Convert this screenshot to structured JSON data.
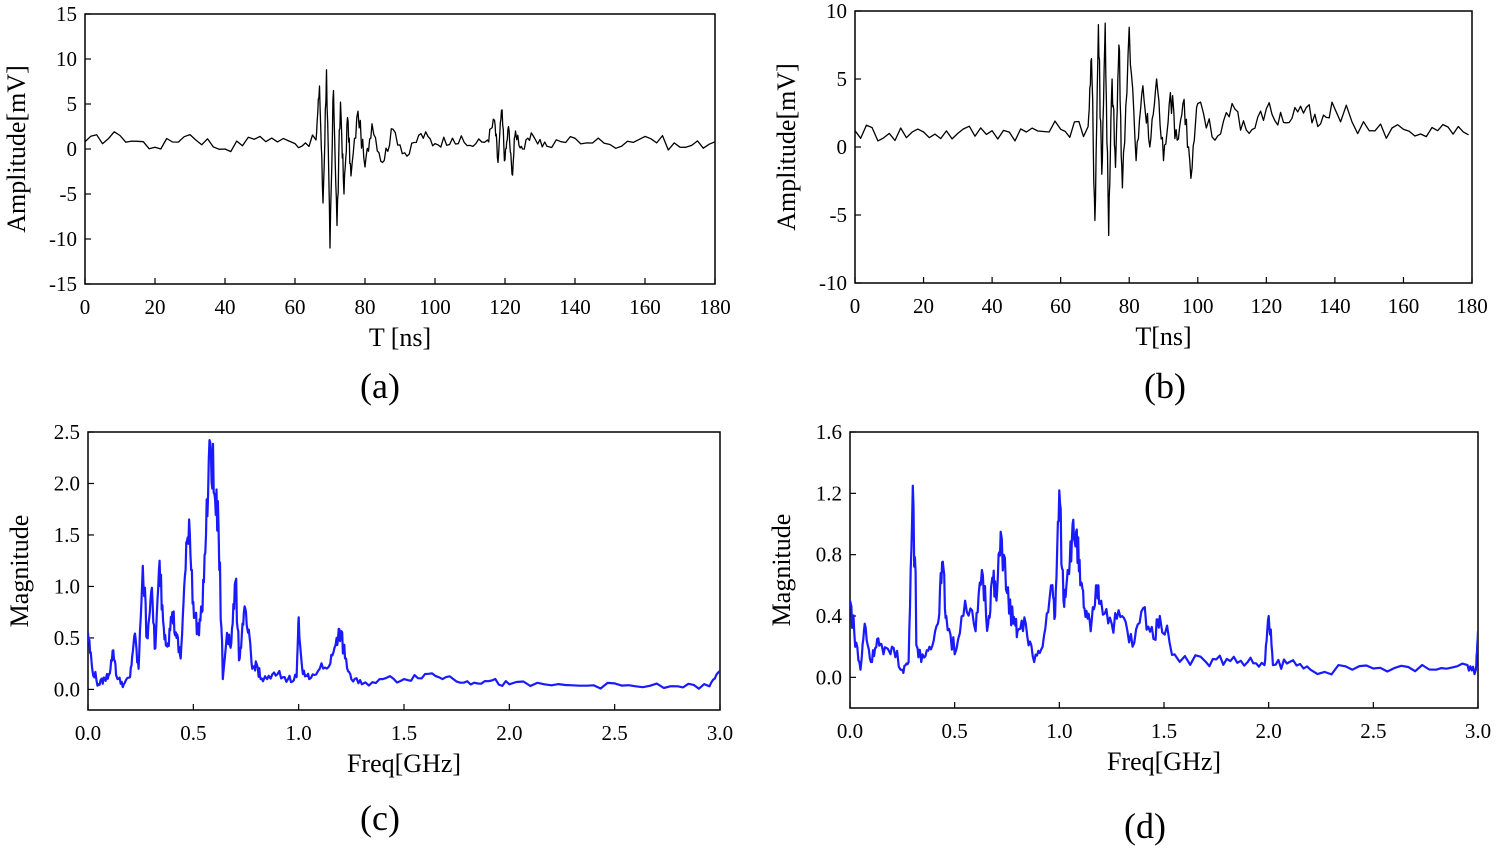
{
  "chart_data": [
    {
      "id": "a",
      "type": "line",
      "panel_label": "(a)",
      "xlabel": "T [ns]",
      "ylabel": "Amplitude[mV]",
      "xlim": [
        0,
        180
      ],
      "ylim": [
        -15,
        15
      ],
      "xticks": [
        0,
        20,
        40,
        60,
        80,
        100,
        120,
        140,
        160,
        180
      ],
      "yticks": [
        -15,
        -10,
        -5,
        0,
        5,
        10,
        15
      ],
      "line_color": "#000000",
      "series": [
        {
          "name": "signal",
          "x": [
            0,
            10,
            20,
            30,
            40,
            50,
            60,
            66,
            67,
            68,
            69,
            70,
            71,
            72,
            73,
            74,
            75,
            76,
            78,
            80,
            82,
            85,
            88,
            92,
            96,
            100,
            105,
            110,
            115,
            117,
            118,
            119,
            120,
            121,
            122,
            123,
            125,
            128,
            132,
            140,
            150,
            160,
            170,
            180
          ],
          "y": [
            0.8,
            1.5,
            0.2,
            1.6,
            0.0,
            1.4,
            0.6,
            1.0,
            7.0,
            -6.0,
            8.8,
            -11.0,
            6.5,
            -8.5,
            5.2,
            -5.0,
            3.5,
            -3.0,
            4.2,
            -2.0,
            2.8,
            -1.5,
            2.2,
            -0.8,
            1.7,
            0.6,
            1.2,
            0.4,
            1.0,
            3.2,
            -1.5,
            4.3,
            -1.2,
            2.5,
            -2.8,
            2.0,
            0.0,
            1.5,
            0.3,
            1.2,
            0.5,
            1.4,
            0.2,
            0.8
          ]
        }
      ]
    },
    {
      "id": "b",
      "type": "line",
      "panel_label": "(b)",
      "xlabel": "T[ns]",
      "ylabel": "Amplitude[mV]",
      "xlim": [
        0,
        180
      ],
      "ylim": [
        -10,
        10
      ],
      "xticks": [
        0,
        20,
        40,
        60,
        80,
        100,
        120,
        140,
        160,
        180
      ],
      "yticks": [
        -10,
        -5,
        0,
        5,
        10
      ],
      "line_color": "#000000",
      "series": [
        {
          "name": "signal",
          "x": [
            0,
            10,
            20,
            30,
            40,
            50,
            60,
            68,
            69,
            70,
            71,
            72,
            73,
            74,
            75,
            76,
            77,
            78,
            80,
            82,
            84,
            86,
            88,
            90,
            92,
            94,
            96,
            98,
            100,
            105,
            110,
            115,
            120,
            125,
            130,
            135,
            140,
            150,
            160,
            170,
            179
          ],
          "y": [
            1.2,
            1.0,
            1.1,
            1.0,
            1.2,
            1.1,
            1.3,
            1.5,
            6.5,
            -5.4,
            9.0,
            -2.0,
            9.1,
            -6.5,
            5.0,
            -1.5,
            7.5,
            -3.0,
            8.8,
            -1.0,
            4.5,
            0.0,
            5.0,
            -1.0,
            4.0,
            0.5,
            3.5,
            -2.3,
            3.2,
            0.5,
            3.2,
            1.0,
            2.8,
            1.8,
            3.0,
            1.5,
            2.8,
            1.2,
            1.3,
            1.2,
            0.9
          ]
        }
      ]
    },
    {
      "id": "c",
      "type": "line",
      "panel_label": "(c)",
      "xlabel": "Freq[GHz]",
      "ylabel": "Magnitude",
      "xlim": [
        0,
        3.0
      ],
      "ylim": [
        -0.2,
        2.5
      ],
      "xticks": [
        0.0,
        0.5,
        1.0,
        1.5,
        2.0,
        2.5,
        3.0
      ],
      "yticks": [
        0.0,
        0.5,
        1.0,
        1.5,
        2.0,
        2.5
      ],
      "line_color": "#1a1aff",
      "series": [
        {
          "name": "spectrum",
          "x": [
            0.0,
            0.02,
            0.05,
            0.08,
            0.1,
            0.12,
            0.14,
            0.17,
            0.2,
            0.22,
            0.24,
            0.26,
            0.28,
            0.3,
            0.32,
            0.34,
            0.36,
            0.38,
            0.4,
            0.42,
            0.44,
            0.46,
            0.48,
            0.5,
            0.52,
            0.54,
            0.56,
            0.58,
            0.6,
            0.62,
            0.64,
            0.66,
            0.68,
            0.7,
            0.72,
            0.74,
            0.76,
            0.78,
            0.8,
            0.82,
            0.85,
            0.9,
            0.95,
            0.99,
            1.0,
            1.02,
            1.05,
            1.1,
            1.15,
            1.18,
            1.2,
            1.22,
            1.25,
            1.3,
            1.4,
            1.5,
            1.6,
            1.7,
            1.8,
            1.9,
            2.0,
            2.2,
            2.4,
            2.6,
            2.8,
            2.95,
            3.0
          ],
          "y": [
            0.55,
            0.2,
            0.05,
            0.1,
            0.15,
            0.38,
            0.1,
            0.05,
            0.12,
            0.52,
            0.2,
            1.2,
            0.5,
            0.95,
            0.4,
            1.25,
            0.6,
            0.45,
            0.75,
            0.5,
            0.3,
            1.1,
            1.65,
            0.85,
            0.55,
            0.75,
            1.5,
            2.4,
            1.9,
            1.55,
            0.1,
            0.55,
            0.45,
            1.05,
            0.3,
            0.75,
            0.55,
            0.2,
            0.25,
            0.1,
            0.1,
            0.15,
            0.1,
            0.12,
            0.7,
            0.15,
            0.1,
            0.2,
            0.25,
            0.5,
            0.55,
            0.3,
            0.1,
            0.05,
            0.1,
            0.1,
            0.15,
            0.12,
            0.08,
            0.08,
            0.05,
            0.04,
            0.04,
            0.03,
            0.03,
            0.03,
            0.18
          ]
        }
      ]
    },
    {
      "id": "d",
      "type": "line",
      "panel_label": "(d)",
      "xlabel": "Freq[GHz]",
      "ylabel": "Magnitude",
      "xlim": [
        0,
        3.0
      ],
      "ylim": [
        -0.2,
        1.6
      ],
      "xticks": [
        0.0,
        0.5,
        1.0,
        1.5,
        2.0,
        2.5,
        3.0
      ],
      "yticks": [
        0.0,
        0.4,
        0.8,
        1.2,
        1.6
      ],
      "line_color": "#1a1aff",
      "series": [
        {
          "name": "spectrum",
          "x": [
            0.0,
            0.02,
            0.05,
            0.07,
            0.1,
            0.13,
            0.16,
            0.2,
            0.25,
            0.28,
            0.3,
            0.32,
            0.34,
            0.38,
            0.42,
            0.44,
            0.46,
            0.5,
            0.55,
            0.6,
            0.63,
            0.66,
            0.68,
            0.7,
            0.72,
            0.75,
            0.78,
            0.8,
            0.84,
            0.88,
            0.92,
            0.96,
            0.98,
            1.0,
            1.02,
            1.04,
            1.06,
            1.08,
            1.1,
            1.12,
            1.15,
            1.18,
            1.2,
            1.25,
            1.3,
            1.35,
            1.4,
            1.45,
            1.48,
            1.55,
            1.7,
            1.8,
            1.9,
            1.98,
            2.0,
            2.02,
            2.1,
            2.2,
            2.4,
            2.6,
            2.8,
            2.95,
            2.99,
            3.0
          ],
          "y": [
            0.5,
            0.3,
            0.05,
            0.35,
            0.1,
            0.25,
            0.15,
            0.2,
            0.05,
            0.1,
            1.25,
            0.2,
            0.1,
            0.2,
            0.35,
            0.75,
            0.4,
            0.15,
            0.5,
            0.3,
            0.7,
            0.35,
            0.65,
            0.5,
            0.95,
            0.55,
            0.35,
            0.3,
            0.35,
            0.1,
            0.2,
            0.6,
            0.4,
            1.22,
            0.5,
            0.7,
            0.9,
            0.95,
            0.6,
            0.45,
            0.3,
            0.6,
            0.5,
            0.35,
            0.4,
            0.2,
            0.45,
            0.25,
            0.4,
            0.15,
            0.1,
            0.12,
            0.1,
            0.08,
            0.4,
            0.08,
            0.1,
            0.05,
            0.05,
            0.06,
            0.05,
            0.08,
            0.05,
            0.3
          ]
        }
      ]
    }
  ]
}
